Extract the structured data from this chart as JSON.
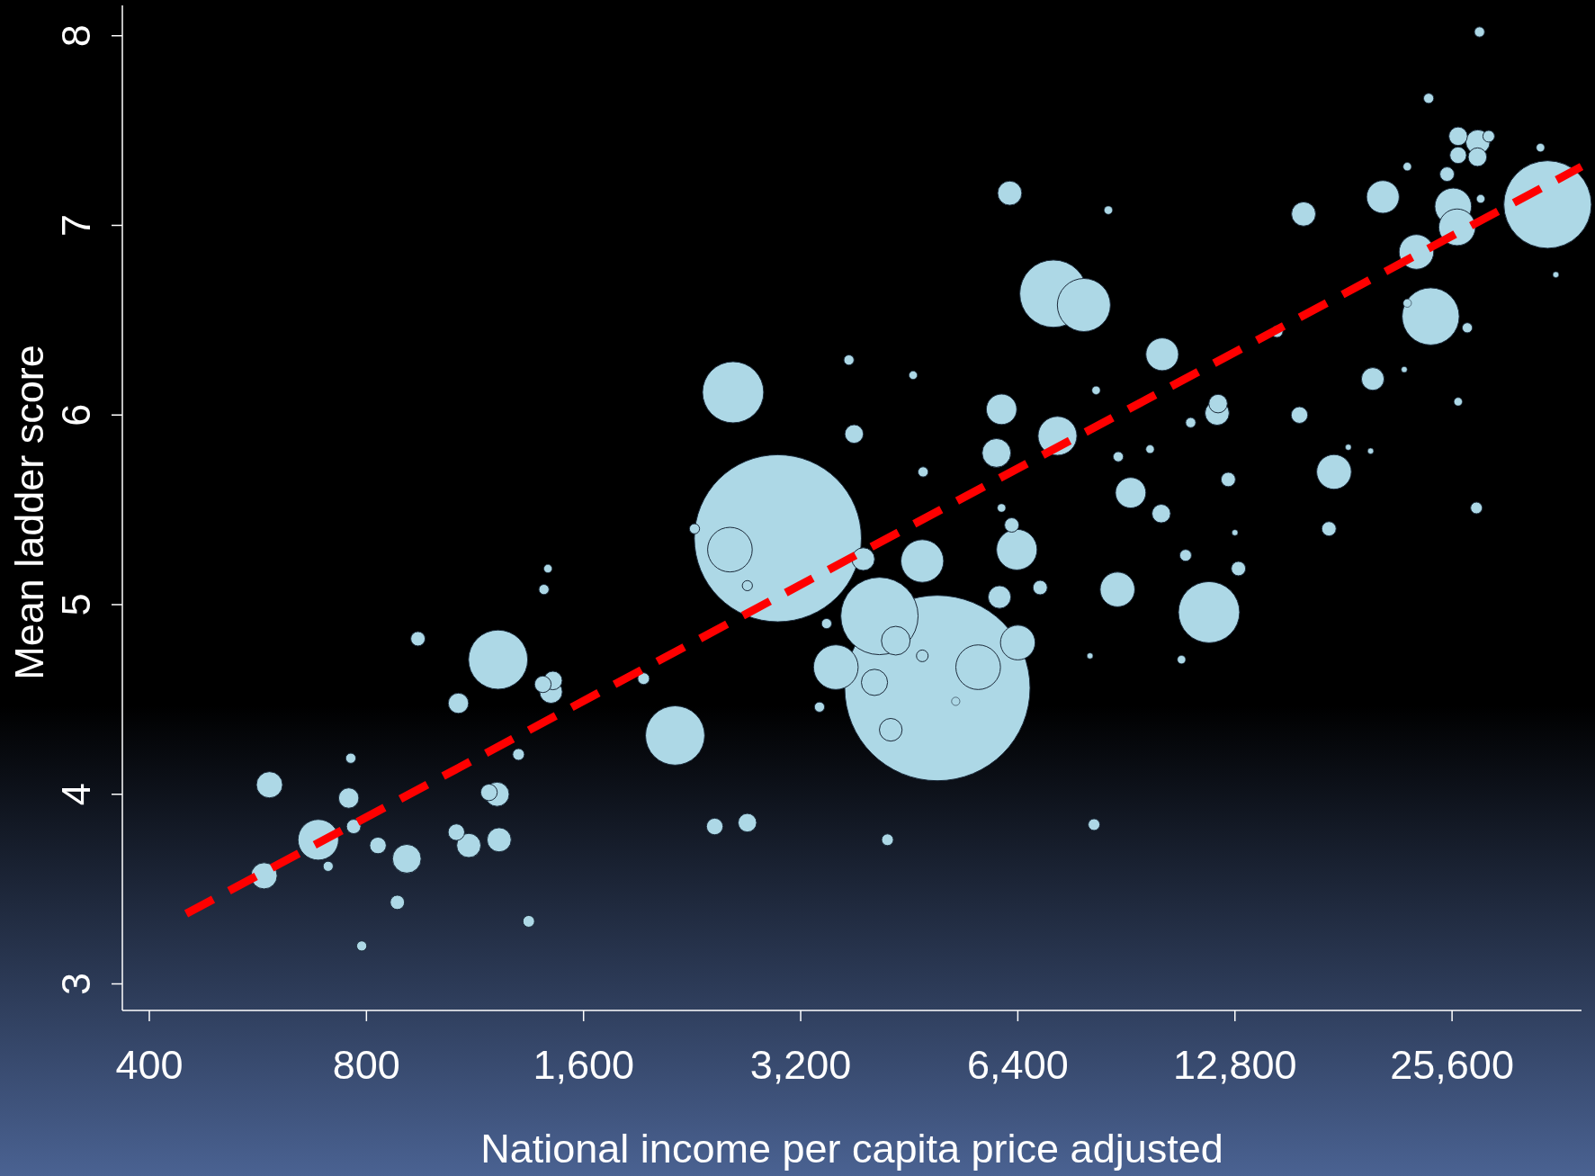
{
  "chart_data": {
    "type": "bubble",
    "xlabel": "National income per capita price adjusted",
    "ylabel": "Mean ladder score",
    "log": "x",
    "xlim": [
      367,
      38700
    ],
    "ylim": [
      2.86,
      8.16
    ],
    "xticks": [
      400,
      800,
      {
        "value": 1600,
        "label": "1,600"
      },
      {
        "value": 3200,
        "label": "3,200"
      },
      {
        "value": 6400,
        "label": "6,400"
      },
      {
        "value": 12800,
        "label": "12,800"
      },
      {
        "value": 25600,
        "label": "25,600"
      }
    ],
    "yticks": [
      3,
      4,
      5,
      6,
      7,
      8
    ],
    "series": [
      {
        "color": "#add8e6",
        "x": [
          577,
          587,
          686,
          708,
          756,
          761,
          768,
          788,
          830,
          883,
          910,
          943,
          1073,
          1066,
          1109,
          1183,
          1214,
          1218,
          1222,
          1300,
          1343,
          1410,
          1428,
          1405,
          1442,
          1451,
          1938,
          2143,
          2280,
          2432,
          2553,
          2579,
          2699,
          2699,
          2975,
          3398,
          3476,
          3580,
          3733,
          3795,
          3908,
          4115,
          4050,
          4222,
          4266,
          4335,
          4582,
          4718,
          4730,
          4718,
          4951,
          5249,
          5639,
          6037,
          5979,
          6076,
          6076,
          6237,
          6277,
          6379,
          6400,
          6873,
          7171,
          7264,
          7903,
          8059,
          8163,
          8217,
          8545,
          8797,
          8820,
          9176,
          9762,
          10117,
          10148,
          10793,
          10935,
          11114,
          11784,
          12092,
          12130,
          12531,
          12800,
          12945,
          14642,
          15728,
          15936,
          17281,
          17562,
          18383,
          19741,
          19876,
          20528,
          21976,
          22191,
          22191,
          22847,
          23757,
          23912,
          25196,
          25690,
          26016,
          26103,
          26103,
          26103,
          26877,
          27673,
          27764,
          27800,
          27945,
          28050,
          28780,
          33948,
          34732,
          35656
        ],
        "values": [
          3.57,
          4.05,
          3.76,
          3.62,
          3.98,
          4.19,
          3.83,
          3.2,
          3.73,
          3.43,
          3.66,
          4.82,
          4.48,
          3.8,
          3.73,
          4.01,
          4.0,
          4.71,
          3.76,
          4.21,
          3.33,
          5.08,
          5.19,
          4.58,
          4.54,
          4.6,
          4.61,
          4.31,
          5.4,
          3.83,
          5.29,
          6.12,
          3.85,
          5.1,
          5.35,
          4.46,
          4.9,
          4.67,
          6.29,
          5.9,
          5.24,
          4.94,
          4.59,
          3.76,
          4.34,
          4.81,
          6.21,
          5.23,
          5.7,
          4.73,
          4.56,
          4.49,
          4.67,
          5.04,
          5.8,
          6.03,
          5.51,
          7.17,
          5.42,
          5.29,
          4.8,
          5.09,
          6.64,
          5.89,
          6.58,
          4.73,
          3.84,
          6.13,
          7.08,
          5.08,
          5.78,
          5.59,
          5.82,
          5.48,
          6.32,
          4.71,
          5.26,
          5.96,
          4.96,
          6.01,
          6.06,
          5.66,
          5.38,
          5.19,
          6.44,
          6.0,
          7.06,
          5.4,
          5.7,
          5.83,
          5.81,
          6.19,
          7.15,
          6.24,
          7.31,
          6.59,
          6.86,
          7.67,
          6.52,
          7.27,
          7.1,
          6.99,
          7.47,
          6.07,
          7.37,
          6.46,
          5.51,
          7.36,
          7.44,
          8.02,
          7.14,
          7.47,
          7.41,
          7.11,
          6.74
        ],
        "sizes": [
          0.02,
          0.02,
          0.048,
          0.003,
          0.012,
          0.003,
          0.006,
          0.003,
          0.008,
          0.006,
          0.024,
          0.006,
          0.012,
          0.008,
          0.017,
          0.008,
          0.017,
          0.102,
          0.017,
          0.004,
          0.004,
          0.003,
          0.002,
          0.008,
          0.015,
          0.01,
          0.004,
          0.102,
          0.003,
          0.008,
          0.058,
          0.109,
          0.01,
          0.003,
          0.812,
          0.003,
          0.003,
          0.058,
          0.003,
          0.01,
          0.015,
          0.174,
          0.02,
          0.004,
          0.015,
          0.024,
          0.002,
          0.053,
          0.003,
          0.004,
          1,
          0.002,
          0.058,
          0.015,
          0.024,
          0.027,
          0.002,
          0.017,
          0.006,
          0.048,
          0.035,
          0.006,
          0.132,
          0.044,
          0.082,
          0.001,
          0.004,
          0.002,
          0.002,
          0.035,
          0.003,
          0.027,
          0.002,
          0.01,
          0.031,
          0.002,
          0.004,
          0.003,
          0.109,
          0.017,
          0.01,
          0.006,
          0.001,
          0.006,
          0.004,
          0.008,
          0.017,
          0.006,
          0.035,
          0.001,
          0.001,
          0.015,
          0.031,
          0.001,
          0.002,
          0.002,
          0.035,
          0.003,
          0.095,
          0.006,
          0.039,
          0.039,
          0.01,
          0.002,
          0.008,
          0.003,
          0.004,
          0.01,
          0.017,
          0.003,
          0.002,
          0.004,
          0.002,
          0.223,
          0.001
        ]
      },
      {
        "type": "line",
        "color": "#ff0000",
        "line_style": "dashed",
        "x": [
          450,
          38700
        ],
        "values": [
          3.37,
          7.31
        ]
      }
    ]
  }
}
